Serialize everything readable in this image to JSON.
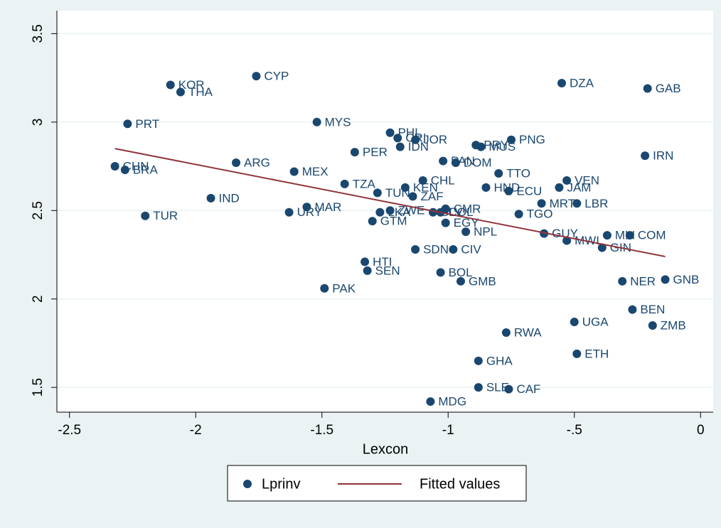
{
  "chart_data": {
    "type": "scatter",
    "xlabel": "Lexcon",
    "xlim": [
      -2.55,
      0.05
    ],
    "ylim": [
      1.36,
      3.63
    ],
    "xticks": [
      -2.5,
      -2,
      -1.5,
      -1,
      {
        "value": -0.5,
        "label": "-.5"
      },
      0
    ],
    "yticks": [
      1.5,
      2,
      2.5,
      3,
      3.5
    ],
    "grid": true,
    "legend": "bottom",
    "series": [
      {
        "name": "Lprinv",
        "type": "scatter",
        "color": "#1a476f",
        "labels": [
          "KOR",
          "THA",
          "CYP",
          "PRT",
          "MYS",
          "CHN",
          "BRA",
          "ARG",
          "MEX",
          "IND",
          "TUR",
          "URY",
          "MAR",
          "PAK",
          "PER",
          "TZA",
          "TUN",
          "PHL",
          "CRI",
          "JOR",
          "IDN",
          "PAN",
          "DOM",
          "PRY",
          "MUS",
          "PNG",
          "DZA",
          "GAB",
          "IRN",
          "TTO",
          "CHL",
          "KEN",
          "HND",
          "ECU",
          "VEN",
          "JAM",
          "MRT",
          "LBR",
          "ZAF",
          "CMR",
          "SLV",
          "COL",
          "EGY",
          "TGO",
          "NPL",
          "LKA",
          "ZWE",
          "GTM",
          "GUY",
          "MWI",
          "MLI",
          "COM",
          "GIN",
          "SDN",
          "CIV",
          "HTI",
          "SEN",
          "BOL",
          "GMB",
          "NER",
          "GNB",
          "BEN",
          "ZMB",
          "UGA",
          "RWA",
          "ETH",
          "GHA",
          "SLE",
          "CAF",
          "MDG"
        ],
        "x": [
          -2.1,
          -2.06,
          -1.76,
          -2.27,
          -1.52,
          -2.32,
          -2.28,
          -1.84,
          -1.61,
          -1.94,
          -2.2,
          -1.63,
          -1.56,
          -1.49,
          -1.37,
          -1.41,
          -1.28,
          -1.23,
          -1.2,
          -1.13,
          -1.19,
          -1.02,
          -0.97,
          -0.89,
          -0.87,
          -0.75,
          -0.55,
          -0.21,
          -0.22,
          -0.8,
          -1.1,
          -1.17,
          -0.85,
          -0.76,
          -0.53,
          -0.56,
          -0.63,
          -0.49,
          -1.14,
          -1.01,
          -1.06,
          -1.03,
          -1.01,
          -0.72,
          -0.93,
          -1.27,
          -1.23,
          -1.3,
          -0.62,
          -0.53,
          -0.37,
          -0.28,
          -0.39,
          -1.13,
          -0.98,
          -1.33,
          -1.32,
          -1.03,
          -0.95,
          -0.31,
          -0.14,
          -0.27,
          -0.19,
          -0.5,
          -0.77,
          -0.49,
          -0.88,
          -0.88,
          -0.76,
          -1.07
        ],
        "values": [
          3.21,
          3.17,
          3.26,
          2.99,
          3.0,
          2.75,
          2.73,
          2.77,
          2.72,
          2.57,
          2.47,
          2.49,
          2.52,
          2.06,
          2.83,
          2.65,
          2.6,
          2.94,
          2.91,
          2.9,
          2.86,
          2.78,
          2.77,
          2.87,
          2.86,
          2.9,
          3.22,
          3.19,
          2.81,
          2.71,
          2.67,
          2.63,
          2.63,
          2.61,
          2.67,
          2.63,
          2.54,
          2.54,
          2.58,
          2.51,
          2.49,
          2.49,
          2.43,
          2.48,
          2.38,
          2.49,
          2.5,
          2.44,
          2.37,
          2.33,
          2.36,
          2.36,
          2.29,
          2.28,
          2.28,
          2.21,
          2.16,
          2.15,
          2.1,
          2.1,
          2.11,
          1.94,
          1.85,
          1.87,
          1.81,
          1.69,
          1.65,
          1.5,
          1.49,
          1.42
        ]
      },
      {
        "name": "Fitted values",
        "type": "line",
        "color": "#90353b",
        "x": [
          -2.32,
          -0.14
        ],
        "values": [
          2.85,
          2.24
        ]
      }
    ]
  }
}
